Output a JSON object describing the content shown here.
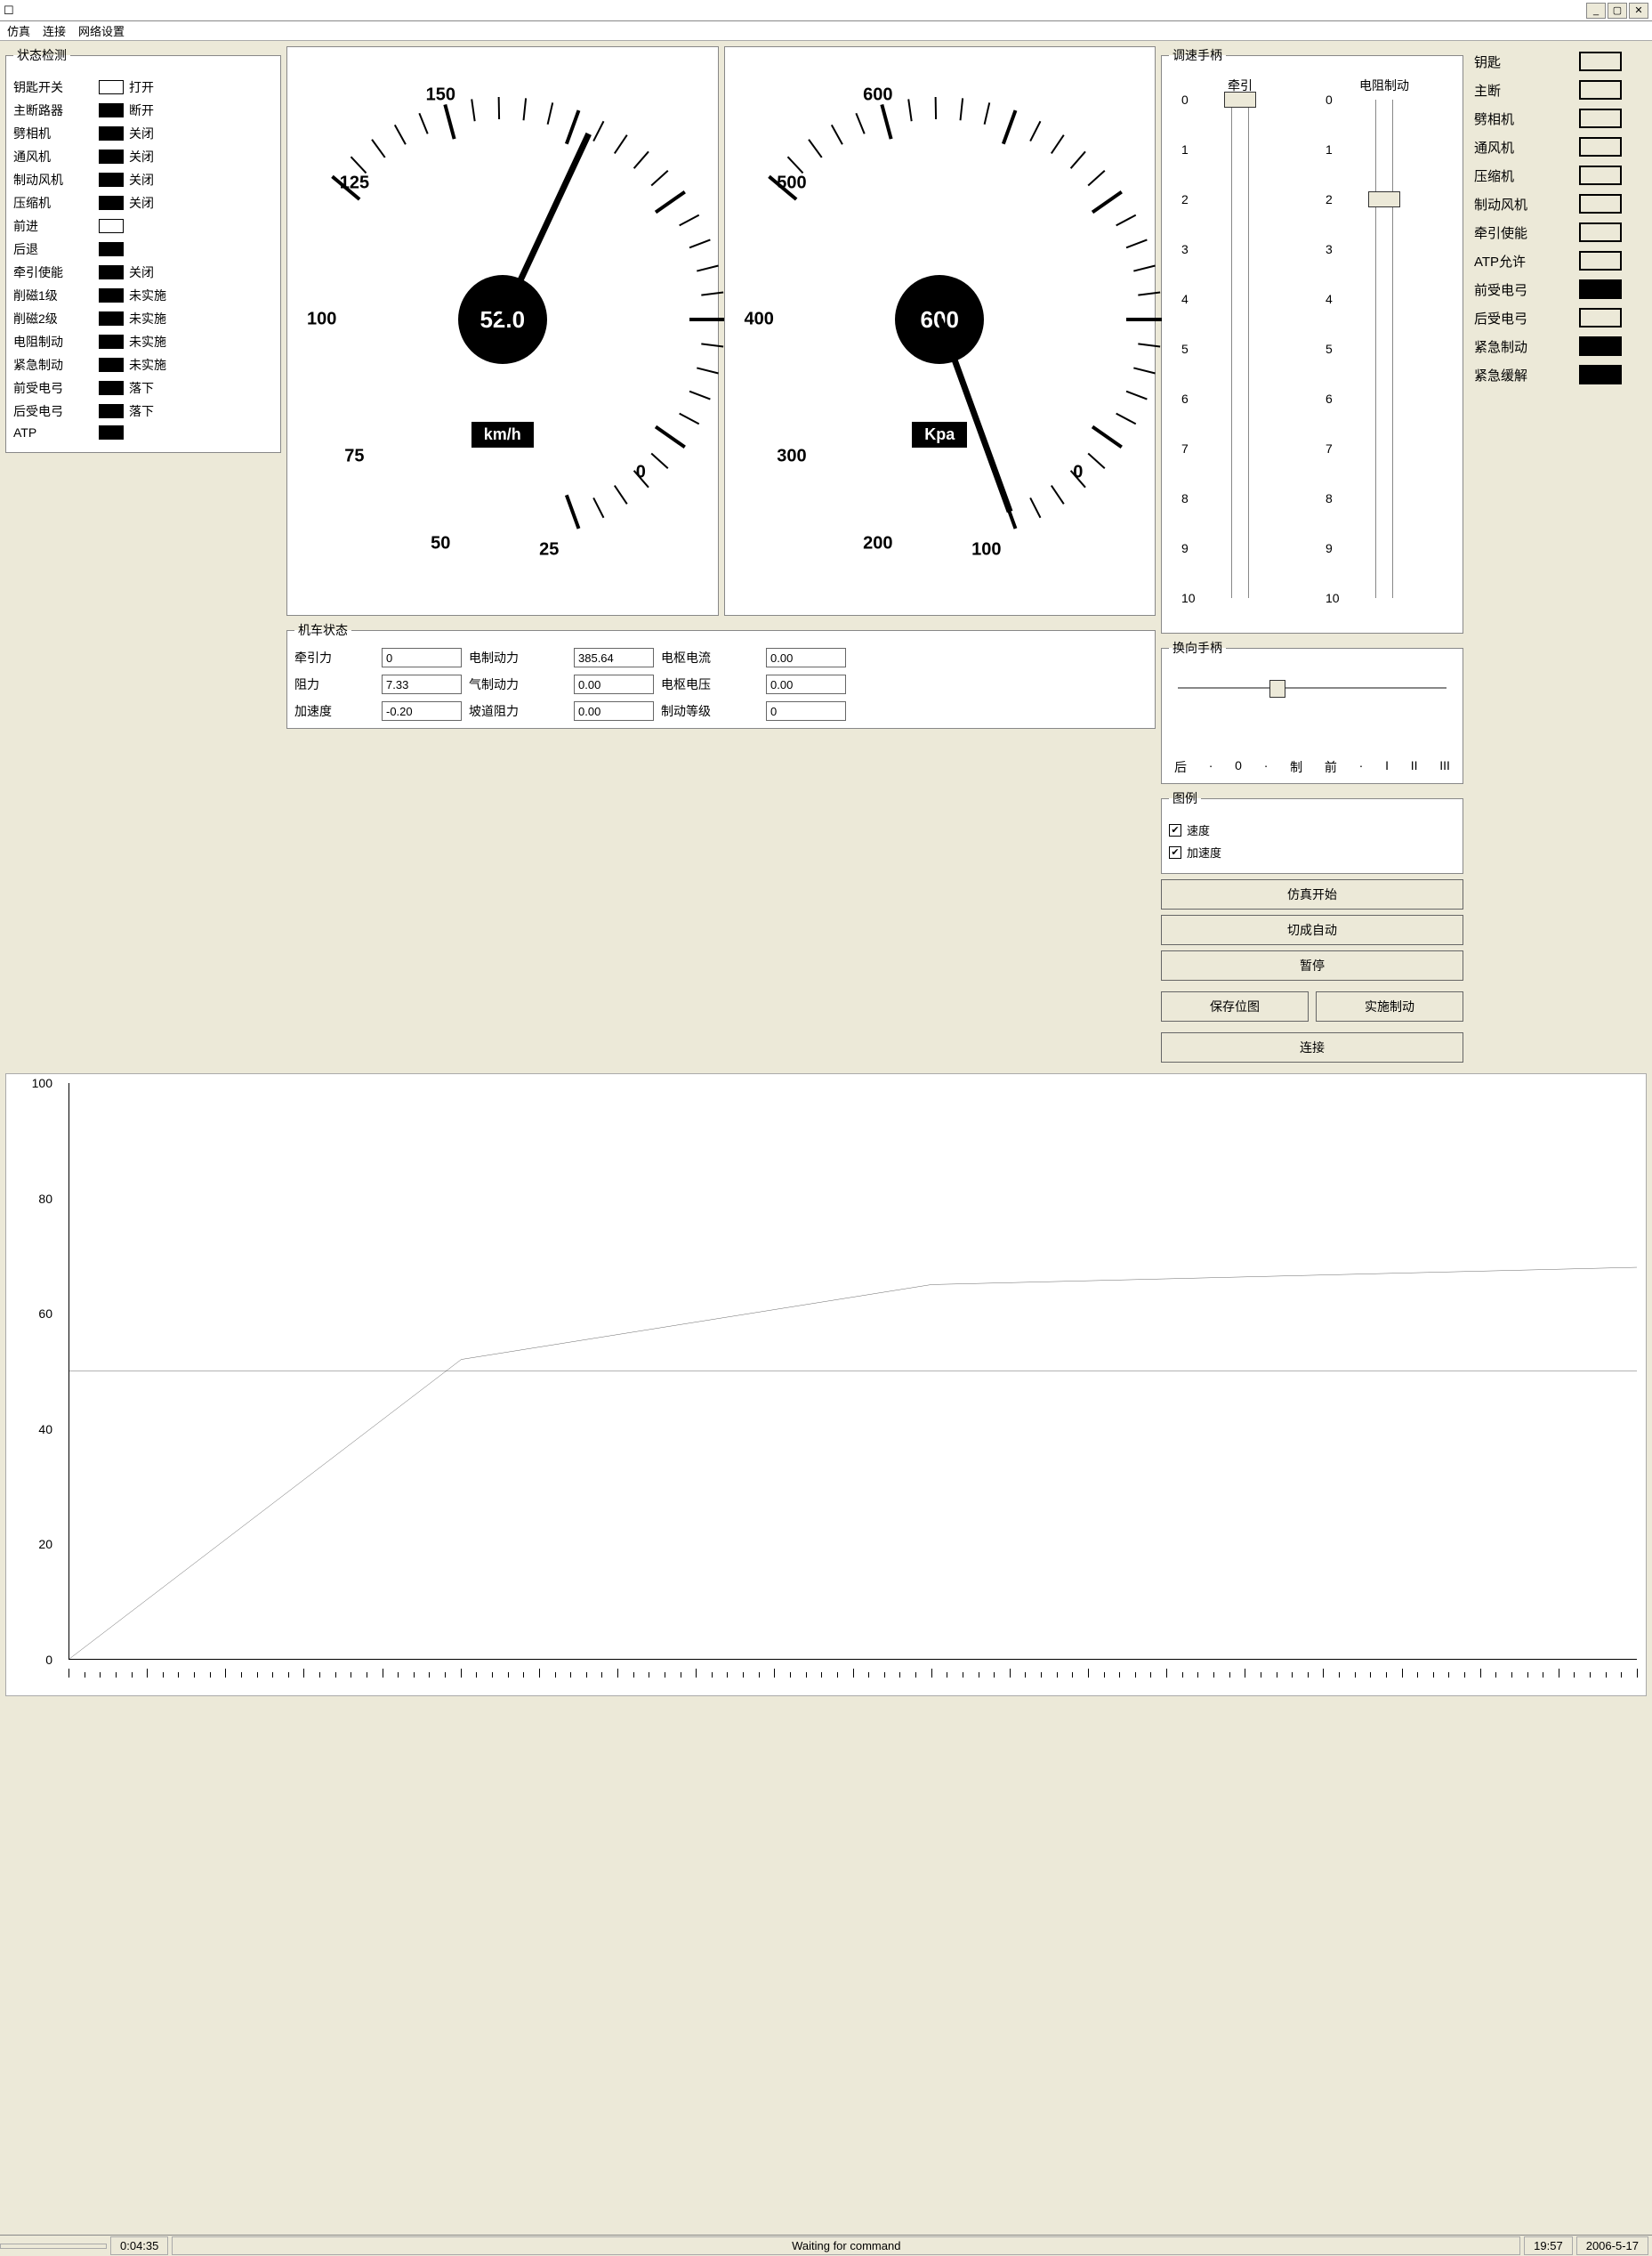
{
  "window": {
    "title": "",
    "menu": [
      "仿真",
      "连接",
      "网络设置"
    ]
  },
  "status_panel": {
    "legend": "状态检测",
    "items": [
      {
        "name": "key-switch",
        "label": "钥匙开关",
        "filled": false,
        "value": "打开"
      },
      {
        "name": "main-breaker",
        "label": "主断路器",
        "filled": true,
        "value": "断开"
      },
      {
        "name": "split-phase",
        "label": "劈相机",
        "filled": true,
        "value": "关闭"
      },
      {
        "name": "vent-fan",
        "label": "通风机",
        "filled": true,
        "value": "关闭"
      },
      {
        "name": "brake-fan",
        "label": "制动风机",
        "filled": true,
        "value": "关闭"
      },
      {
        "name": "compressor",
        "label": "压缩机",
        "filled": true,
        "value": "关闭"
      },
      {
        "name": "forward",
        "label": "前进",
        "filled": false,
        "value": ""
      },
      {
        "name": "backward",
        "label": "后退",
        "filled": true,
        "value": ""
      },
      {
        "name": "traction-enable",
        "label": "牵引使能",
        "filled": true,
        "value": "关闭"
      },
      {
        "name": "weaken1",
        "label": "削磁1级",
        "filled": true,
        "value": "未实施"
      },
      {
        "name": "weaken2",
        "label": "削磁2级",
        "filled": true,
        "value": "未实施"
      },
      {
        "name": "res-brake",
        "label": "电阻制动",
        "filled": true,
        "value": "未实施"
      },
      {
        "name": "emerg-brake",
        "label": "紧急制动",
        "filled": true,
        "value": "未实施"
      },
      {
        "name": "front-panto",
        "label": "前受电弓",
        "filled": true,
        "value": "落下"
      },
      {
        "name": "rear-panto",
        "label": "后受电弓",
        "filled": true,
        "value": "落下"
      },
      {
        "name": "atp",
        "label": "ATP",
        "filled": true,
        "value": ""
      }
    ]
  },
  "gauges": {
    "speed": {
      "value_text": "52.0",
      "unit": "km/h",
      "ticks": [
        {
          "v": 0,
          "ang": 130
        },
        {
          "v": 25,
          "ang": 165
        },
        {
          "v": 50,
          "ang": 200
        },
        {
          "v": 75,
          "ang": 235
        },
        {
          "v": 100,
          "ang": 270
        },
        {
          "v": 125,
          "ang": 305
        },
        {
          "v": 150,
          "ang": 340
        }
      ],
      "needle_ang": 205
    },
    "pressure": {
      "value_text": "600",
      "unit": "Kpa",
      "ticks": [
        {
          "v": 0,
          "ang": 130
        },
        {
          "v": 100,
          "ang": 165
        },
        {
          "v": 200,
          "ang": 200
        },
        {
          "v": 300,
          "ang": 235
        },
        {
          "v": 400,
          "ang": 270
        },
        {
          "v": 500,
          "ang": 305
        },
        {
          "v": 600,
          "ang": 340
        }
      ],
      "needle_ang": 340
    }
  },
  "speed_handle": {
    "legend": "调速手柄",
    "cols": [
      {
        "title": "牵引",
        "min": 0,
        "max": 10,
        "value": 0
      },
      {
        "title": "电阻制动",
        "min": 0,
        "max": 10,
        "value": 2
      }
    ]
  },
  "vehicle_state": {
    "legend": "机车状态",
    "rows": [
      [
        {
          "l": "牵引力",
          "v": "0"
        },
        {
          "l": "电制动力",
          "v": "385.64"
        },
        {
          "l": "电枢电流",
          "v": "0.00"
        }
      ],
      [
        {
          "l": "阻力",
          "v": "7.33"
        },
        {
          "l": "气制动力",
          "v": "0.00"
        },
        {
          "l": "电枢电压",
          "v": "0.00"
        }
      ],
      [
        {
          "l": "加速度",
          "v": "-0.20"
        },
        {
          "l": "坡道阻力",
          "v": "0.00"
        },
        {
          "l": "制动等级",
          "v": "0"
        }
      ]
    ]
  },
  "direction_handle": {
    "legend": "换向手柄",
    "labels": [
      "后",
      "·",
      "0",
      "·",
      "制",
      "前",
      "·",
      "I",
      "II",
      "III"
    ],
    "thumb_pct": 38
  },
  "legend_box": {
    "legend": "图例",
    "items": [
      {
        "label": "速度",
        "checked": true
      },
      {
        "label": "加速度",
        "checked": true
      }
    ]
  },
  "buttons": {
    "sim_start": "仿真开始",
    "switch_auto": "切成自动",
    "pause": "暂停",
    "save_img": "保存位图",
    "do_brake": "实施制动",
    "connect": "连接"
  },
  "indicators": [
    {
      "label": "钥匙",
      "on": false
    },
    {
      "label": "主断",
      "on": false
    },
    {
      "label": "劈相机",
      "on": false
    },
    {
      "label": "通风机",
      "on": false
    },
    {
      "label": "压缩机",
      "on": false
    },
    {
      "label": "制动风机",
      "on": false
    },
    {
      "label": "牵引使能",
      "on": false
    },
    {
      "label": "ATP允许",
      "on": false
    },
    {
      "label": "前受电弓",
      "on": true
    },
    {
      "label": "后受电弓",
      "on": false
    },
    {
      "label": "紧急制动",
      "on": true
    },
    {
      "label": "紧急缓解",
      "on": true
    }
  ],
  "chart": {
    "y_labels": [
      0,
      20,
      40,
      60,
      80,
      100
    ],
    "series": [
      {
        "points": [
          [
            0,
            0
          ],
          [
            25,
            52
          ],
          [
            55,
            65
          ],
          [
            100,
            68
          ]
        ]
      },
      {
        "points": [
          [
            0,
            50
          ],
          [
            100,
            50
          ]
        ]
      }
    ]
  },
  "status_bar": {
    "elapsed": "0:04:35",
    "msg": "Waiting for command",
    "time": "19:57",
    "date": "2006-5-17"
  }
}
